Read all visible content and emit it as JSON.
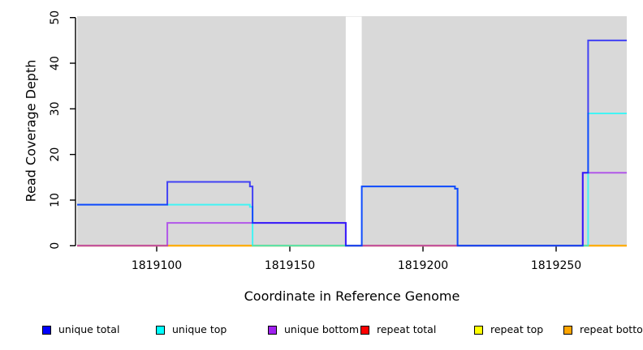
{
  "chart_data": {
    "type": "line",
    "subtype": "step-coverage",
    "title": "",
    "xlabel": "Coordinate in Reference Genome",
    "ylabel": "Read Coverage Depth",
    "xlim": [
      1819070,
      1819277
    ],
    "ylim": [
      0,
      50
    ],
    "x_ticks": [
      1819100,
      1819150,
      1819200,
      1819250
    ],
    "y_ticks": [
      0,
      10,
      20,
      30,
      40,
      50
    ],
    "grid": false,
    "panel_background": "#D9D9D9",
    "gap_region": {
      "x_start": 1819171,
      "x_end": 1819177,
      "color": "#FFFFFF"
    },
    "line_width": 2,
    "line_opacity": 0.7,
    "series": [
      {
        "name": "repeat total",
        "color": "#FF0000",
        "points": [
          [
            1819070,
            0
          ],
          [
            1819277,
            0
          ]
        ]
      },
      {
        "name": "repeat top",
        "color": "#FFFF00",
        "points": [
          [
            1819070,
            0
          ],
          [
            1819277,
            0
          ]
        ]
      },
      {
        "name": "repeat bottom",
        "color": "#FFA500",
        "points": [
          [
            1819070,
            0
          ],
          [
            1819277,
            0
          ]
        ]
      },
      {
        "name": "unique bottom",
        "color": "#A020F0",
        "points": [
          [
            1819070,
            0
          ],
          [
            1819104,
            0
          ],
          [
            1819104,
            5
          ],
          [
            1819171,
            5
          ],
          [
            1819171,
            0
          ],
          [
            1819260,
            0
          ],
          [
            1819260,
            16
          ],
          [
            1819277,
            16
          ]
        ]
      },
      {
        "name": "unique top",
        "color": "#00FFFF",
        "points": [
          [
            1819070,
            9
          ],
          [
            1819135,
            9
          ],
          [
            1819135,
            8.5
          ],
          [
            1819136,
            8.5
          ],
          [
            1819136,
            0
          ],
          [
            1819177,
            0
          ],
          [
            1819177,
            13
          ],
          [
            1819212,
            13
          ],
          [
            1819212,
            12.5
          ],
          [
            1819213,
            12.5
          ],
          [
            1819213,
            0
          ],
          [
            1819262,
            0
          ],
          [
            1819262,
            29
          ],
          [
            1819277,
            29
          ]
        ]
      },
      {
        "name": "unique total",
        "color": "#0000FF",
        "points": [
          [
            1819070,
            9
          ],
          [
            1819104,
            9
          ],
          [
            1819104,
            14
          ],
          [
            1819135,
            14
          ],
          [
            1819135,
            13
          ],
          [
            1819136,
            13
          ],
          [
            1819136,
            5
          ],
          [
            1819171,
            5
          ],
          [
            1819171,
            0
          ],
          [
            1819177,
            0
          ],
          [
            1819177,
            13
          ],
          [
            1819212,
            13
          ],
          [
            1819212,
            12.5
          ],
          [
            1819213,
            12.5
          ],
          [
            1819213,
            0
          ],
          [
            1819260,
            0
          ],
          [
            1819260,
            16
          ],
          [
            1819262,
            16
          ],
          [
            1819262,
            45
          ],
          [
            1819277,
            45
          ]
        ]
      }
    ],
    "legend": {
      "position": "bottom",
      "marker": "filled-square-black-border",
      "items": [
        {
          "label": "unique total",
          "color": "#0000FF"
        },
        {
          "label": "unique top",
          "color": "#00FFFF"
        },
        {
          "label": "unique bottom",
          "color": "#A020F0"
        },
        {
          "label": "repeat total",
          "color": "#FF0000"
        },
        {
          "label": "repeat top",
          "color": "#FFFF00"
        },
        {
          "label": "repeat bottom",
          "color": "#FFA500"
        }
      ]
    }
  }
}
